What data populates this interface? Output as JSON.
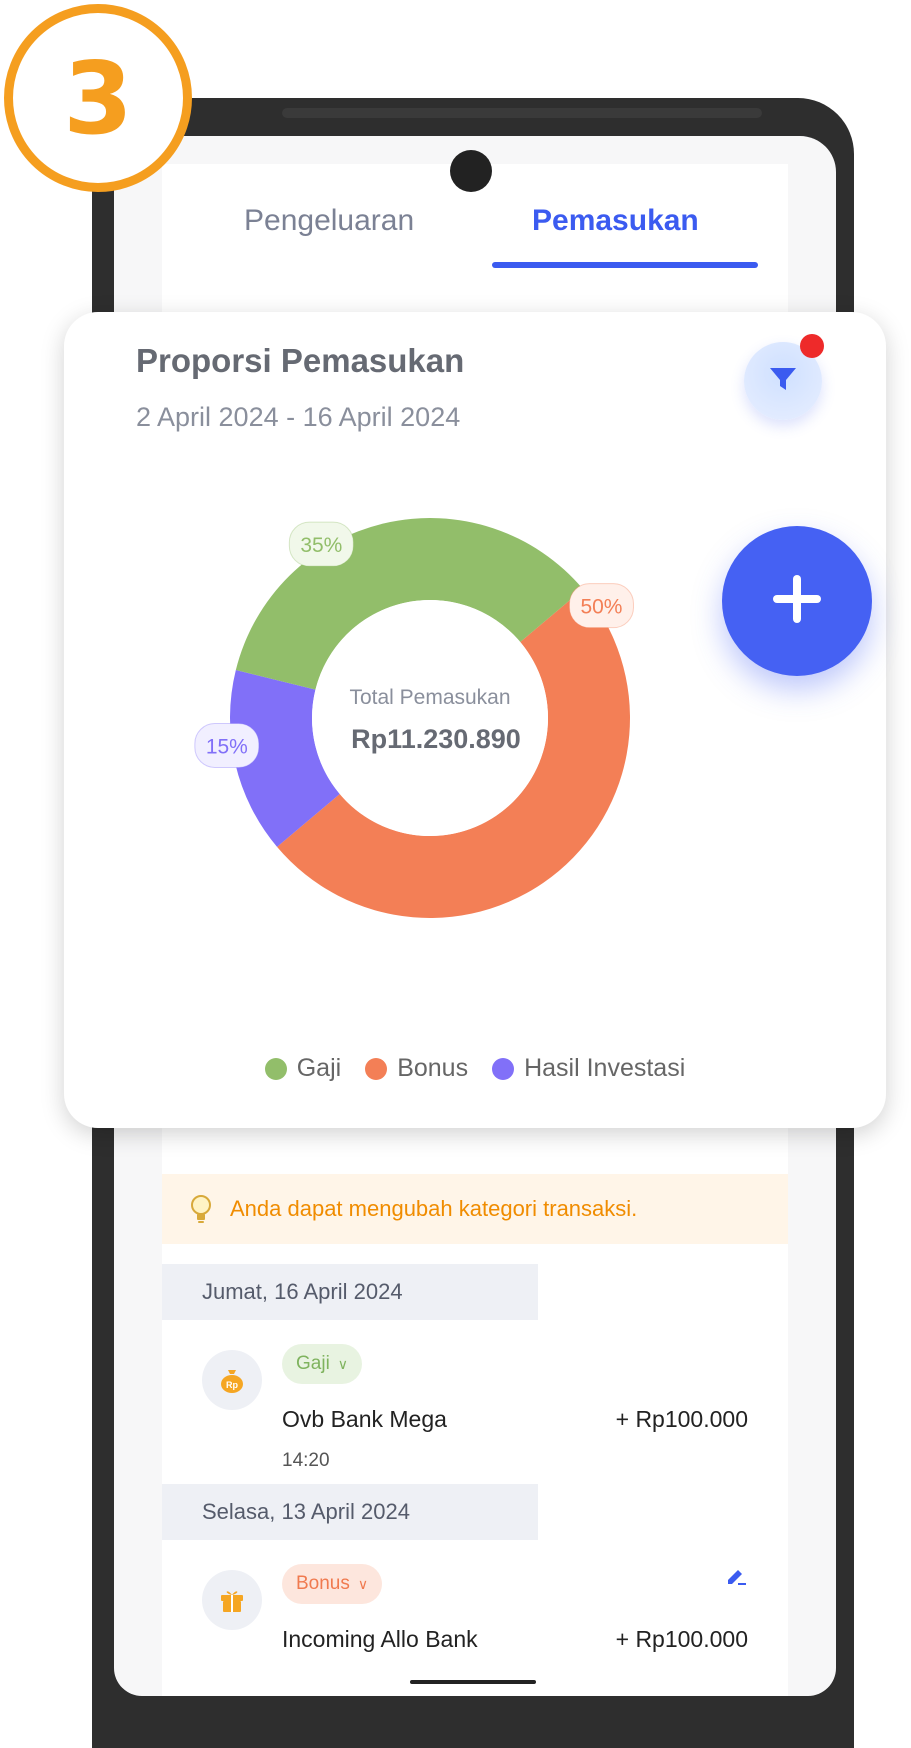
{
  "step_number": "3",
  "tabs": {
    "expenses": "Pengeluaran",
    "income": "Pemasukan",
    "active": "income"
  },
  "card": {
    "title": "Proporsi Pemasukan",
    "subtitle": "2 April 2024 - 16 April 2024",
    "filter_icon": "funnel-icon",
    "center_label": "Total Pemasukan",
    "center_value": "Rp11.230.890"
  },
  "chart_data": {
    "type": "pie",
    "categories": [
      "Bonus",
      "Hasil Investasi",
      "Gaji"
    ],
    "values": [
      50,
      15,
      35
    ],
    "labels": [
      "50%",
      "15%",
      "35%"
    ],
    "colors": [
      "#f37f56",
      "#8170f8",
      "#92be6a"
    ],
    "label_bg": [
      "#fff0ea",
      "#f1efff",
      "#f1f8ea"
    ],
    "legend": [
      {
        "name": "Gaji",
        "color": "#92be6a"
      },
      {
        "name": "Bonus",
        "color": "#f37f56"
      },
      {
        "name": "Hasil Investasi",
        "color": "#8170f8"
      }
    ]
  },
  "tip": {
    "icon": "lightbulb-icon",
    "text": "Anda dapat mengubah kategori transaksi."
  },
  "groups": [
    {
      "date": "Jumat, 16 April 2024",
      "transaction": {
        "category": "Gaji",
        "icon": "money-bag-icon",
        "name": "Ovb Bank Mega",
        "amount": "+ Rp100.000",
        "time": "14:20"
      }
    },
    {
      "date": "Selasa, 13 April 2024",
      "transaction": {
        "category": "Bonus",
        "icon": "gift-icon",
        "name": "Incoming Allo Bank",
        "amount": "+ Rp100.000"
      }
    }
  ],
  "fab_icon": "plus-icon"
}
